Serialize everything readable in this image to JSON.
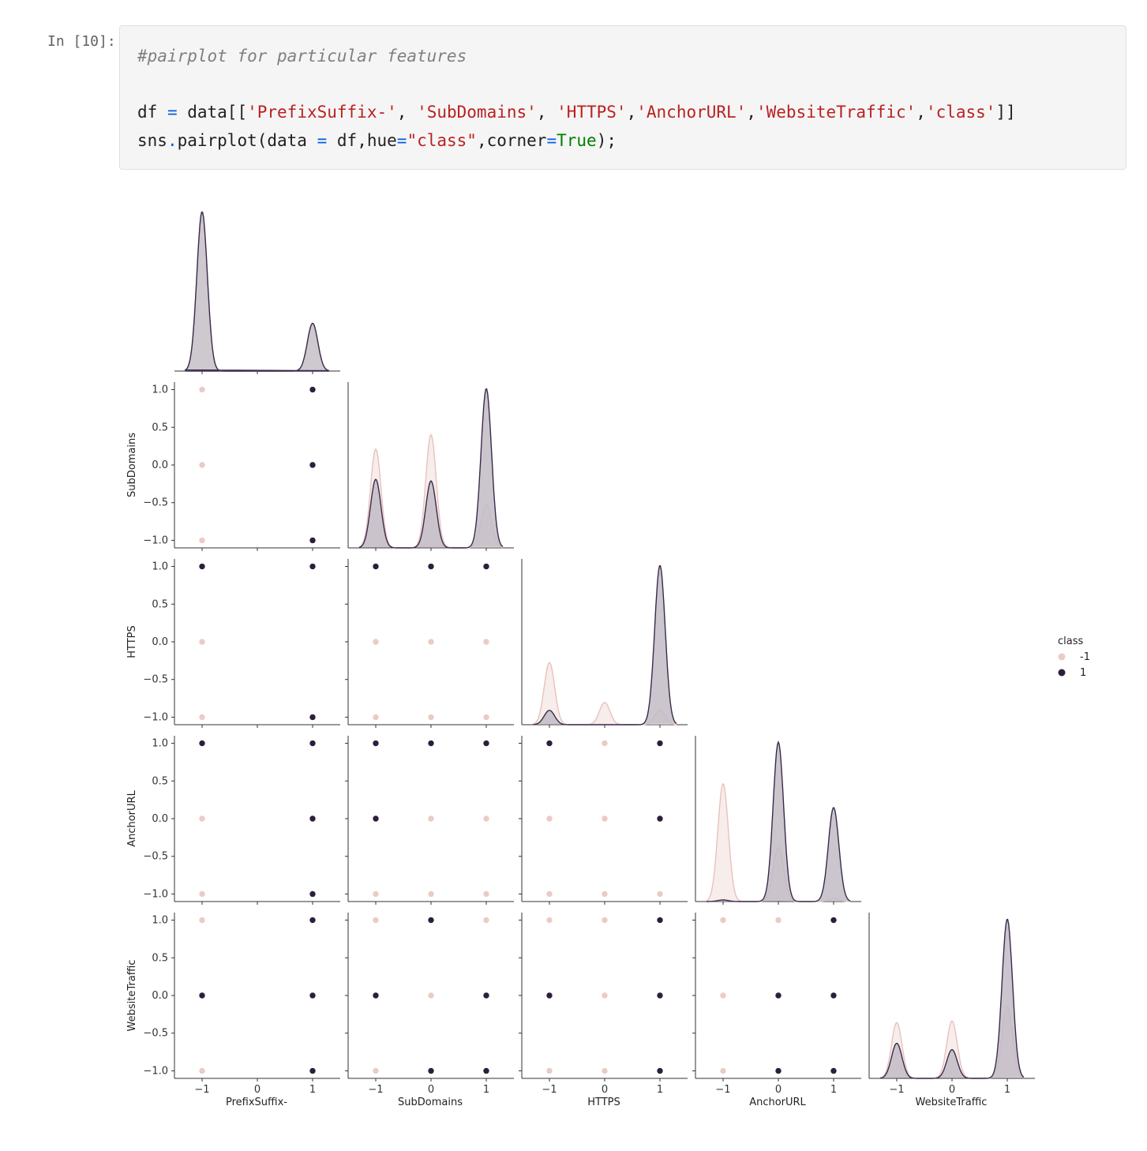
{
  "cell": {
    "prompt": "In [10]:",
    "comment": "#pairplot for particular features",
    "line2": {
      "p1": "df ",
      "eq": "=",
      "p2": " data[[",
      "s1": "'PrefixSuffix-'",
      "c1": ", ",
      "s2": "'SubDomains'",
      "c2": ", ",
      "s3": "'HTTPS'",
      "c3": ",",
      "s4": "'AnchorURL'",
      "c4": ",",
      "s5": "'WebsiteTraffic'",
      "c5": ",",
      "s6": "'class'",
      "p3": "]]"
    },
    "line3": {
      "p1": "sns",
      "dot": ".",
      "p2": "pairplot(data ",
      "eq1": "=",
      "p3": " df,hue",
      "eq2": "=",
      "s1": "\"class\"",
      "p4": ",corner",
      "eq3": "=",
      "kw": "True",
      "p5": ");"
    }
  },
  "chart_data": {
    "type": "scatter",
    "kind": "pairplot-corner",
    "variables": [
      "PrefixSuffix-",
      "SubDomains",
      "HTTPS",
      "AnchorURL",
      "WebsiteTraffic"
    ],
    "hue": "class",
    "ylim": [
      -1.1,
      1.1
    ],
    "yticks": [
      1.0,
      0.5,
      0.0,
      -0.5,
      -1.0
    ],
    "ytick_labels": [
      "1.0",
      "0.5",
      "0.0",
      "−0.5",
      "−1.0"
    ],
    "x_ticks": [
      {
        "values": [
          -1,
          0,
          1
        ],
        "labels": [
          "−1",
          "0",
          "1"
        ]
      },
      {
        "values": [
          -1,
          0,
          1
        ],
        "labels": [
          "−1",
          "0",
          "1"
        ]
      },
      {
        "values": [
          -1,
          0,
          1
        ],
        "labels": [
          "−1",
          "0",
          "1"
        ]
      },
      {
        "values": [
          -1,
          0,
          1
        ],
        "labels": [
          "−1",
          "0",
          "1"
        ]
      },
      {
        "values": [
          -1,
          0,
          1
        ],
        "labels": [
          "−1",
          "0",
          "1"
        ]
      }
    ],
    "legend": {
      "title": "class",
      "position": "right",
      "entries": [
        {
          "label": "-1",
          "color": "#eacbc6"
        },
        {
          "label": "1",
          "color": "#2d1e3e"
        }
      ]
    },
    "colors": {
      "neg": "#eacbc6",
      "pos": "#2d1e3e",
      "neg_fill": "#f2e1de",
      "pos_fill": "#c2bbc5",
      "neg_line": "#e8c2bd",
      "pos_line": "#3a2b4a"
    },
    "diagonal_kde": [
      {
        "var": "PrefixSuffix-",
        "x": [
          -1,
          1
        ],
        "pos": [
          0,
          0
        ],
        "neg": [
          1.0,
          0.3
        ],
        "neg_on_top": true
      },
      {
        "var": "SubDomains",
        "x": [
          -1,
          0,
          1
        ],
        "neg": [
          0.62,
          0.71,
          0.27
        ],
        "pos": [
          0.43,
          0.42,
          1.0
        ]
      },
      {
        "var": "HTTPS",
        "x": [
          -1,
          0,
          1
        ],
        "neg": [
          0.39,
          0.14,
          0.09
        ],
        "pos": [
          0.09,
          0.0,
          1.0
        ]
      },
      {
        "var": "AnchorURL",
        "x": [
          -1,
          0,
          1
        ],
        "neg": [
          0.74,
          0.34,
          0.02
        ],
        "pos": [
          0.01,
          1.0,
          0.59
        ]
      },
      {
        "var": "WebsiteTraffic",
        "x": [
          -1,
          0,
          1
        ],
        "neg": [
          0.35,
          0.36,
          0.45
        ],
        "pos": [
          0.22,
          0.18,
          1.0
        ]
      }
    ],
    "scatter": [
      {
        "row": "SubDomains",
        "col": "PrefixSuffix-",
        "neg": [
          [
            -1,
            1
          ],
          [
            -1,
            0
          ],
          [
            -1,
            -1
          ]
        ],
        "pos": [
          [
            1,
            1
          ],
          [
            1,
            0
          ],
          [
            1,
            -1
          ]
        ]
      },
      {
        "row": "HTTPS",
        "col": "PrefixSuffix-",
        "neg": [
          [
            -1,
            0
          ],
          [
            -1,
            -1
          ]
        ],
        "pos": [
          [
            -1,
            1
          ],
          [
            1,
            1
          ],
          [
            1,
            -1
          ]
        ]
      },
      {
        "row": "HTTPS",
        "col": "SubDomains",
        "neg": [
          [
            -1,
            0
          ],
          [
            0,
            0
          ],
          [
            1,
            0
          ],
          [
            -1,
            -1
          ],
          [
            0,
            -1
          ],
          [
            1,
            -1
          ]
        ],
        "pos": [
          [
            -1,
            1
          ],
          [
            0,
            1
          ],
          [
            1,
            1
          ]
        ]
      },
      {
        "row": "AnchorURL",
        "col": "PrefixSuffix-",
        "neg": [
          [
            -1,
            0
          ],
          [
            -1,
            -1
          ]
        ],
        "pos": [
          [
            -1,
            1
          ],
          [
            1,
            1
          ],
          [
            1,
            0
          ],
          [
            1,
            -1
          ]
        ]
      },
      {
        "row": "AnchorURL",
        "col": "SubDomains",
        "neg": [
          [
            0,
            0
          ],
          [
            1,
            0
          ],
          [
            -1,
            -1
          ],
          [
            0,
            -1
          ],
          [
            1,
            -1
          ]
        ],
        "pos": [
          [
            -1,
            1
          ],
          [
            0,
            1
          ],
          [
            1,
            1
          ],
          [
            -1,
            0
          ]
        ]
      },
      {
        "row": "AnchorURL",
        "col": "HTTPS",
        "neg": [
          [
            0,
            1
          ],
          [
            -1,
            0
          ],
          [
            0,
            0
          ],
          [
            -1,
            -1
          ],
          [
            0,
            -1
          ],
          [
            1,
            -1
          ]
        ],
        "pos": [
          [
            -1,
            1
          ],
          [
            1,
            1
          ],
          [
            1,
            0
          ]
        ]
      },
      {
        "row": "WebsiteTraffic",
        "col": "PrefixSuffix-",
        "neg": [
          [
            -1,
            1
          ],
          [
            -1,
            -1
          ]
        ],
        "pos": [
          [
            1,
            1
          ],
          [
            -1,
            0
          ],
          [
            1,
            0
          ],
          [
            1,
            -1
          ]
        ]
      },
      {
        "row": "WebsiteTraffic",
        "col": "SubDomains",
        "neg": [
          [
            -1,
            1
          ],
          [
            1,
            1
          ],
          [
            0,
            0
          ],
          [
            -1,
            -1
          ]
        ],
        "pos": [
          [
            0,
            1
          ],
          [
            -1,
            0
          ],
          [
            1,
            0
          ],
          [
            0,
            -1
          ],
          [
            1,
            -1
          ]
        ]
      },
      {
        "row": "WebsiteTraffic",
        "col": "HTTPS",
        "neg": [
          [
            -1,
            1
          ],
          [
            0,
            1
          ],
          [
            0,
            0
          ],
          [
            -1,
            -1
          ],
          [
            0,
            -1
          ]
        ],
        "pos": [
          [
            1,
            1
          ],
          [
            -1,
            0
          ],
          [
            1,
            0
          ],
          [
            1,
            -1
          ]
        ]
      },
      {
        "row": "WebsiteTraffic",
        "col": "AnchorURL",
        "neg": [
          [
            -1,
            1
          ],
          [
            0,
            1
          ],
          [
            -1,
            0
          ],
          [
            -1,
            -1
          ]
        ],
        "pos": [
          [
            1,
            1
          ],
          [
            0,
            0
          ],
          [
            1,
            0
          ],
          [
            0,
            -1
          ],
          [
            1,
            -1
          ]
        ]
      }
    ]
  }
}
